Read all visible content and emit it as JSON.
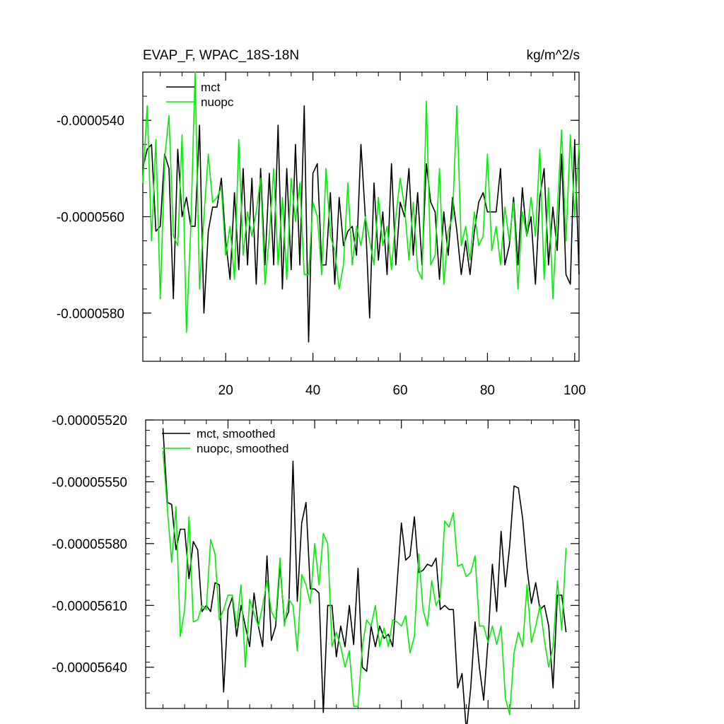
{
  "header": {
    "title": "EVAP_F, WPAC_18S-18N",
    "units": "kg/m^2/s"
  },
  "colors": {
    "mct": "#000000",
    "nuopc": "#00ee00"
  },
  "chart_data": [
    {
      "type": "line",
      "title": "EVAP_F, WPAC_18S-18N",
      "xlim": [
        1,
        101
      ],
      "ylim": [
        -5.9e-05,
        -5.3e-05
      ],
      "x_ticks": [
        20,
        40,
        60,
        80,
        100
      ],
      "x_tick_labels": [
        "20",
        "40",
        "60",
        "80",
        "100"
      ],
      "y_ticks": [
        -5.4e-05,
        -5.6e-05,
        -5.8e-05
      ],
      "y_tick_labels": [
        "-0.0000540",
        "-0.0000560",
        "-0.0000580"
      ],
      "legend_position": "top-left",
      "grid": false,
      "x": [
        1,
        2,
        3,
        4,
        5,
        6,
        7,
        8,
        9,
        10,
        11,
        12,
        13,
        14,
        15,
        16,
        17,
        18,
        19,
        20,
        21,
        22,
        23,
        24,
        25,
        26,
        27,
        28,
        29,
        30,
        31,
        32,
        33,
        34,
        35,
        36,
        37,
        38,
        39,
        40,
        41,
        42,
        43,
        44,
        45,
        46,
        47,
        48,
        49,
        50,
        51,
        52,
        53,
        54,
        55,
        56,
        57,
        58,
        59,
        60,
        61,
        62,
        63,
        64,
        65,
        66,
        67,
        68,
        69,
        70,
        71,
        72,
        73,
        74,
        75,
        76,
        77,
        78,
        79,
        80,
        81,
        82,
        83,
        84,
        85,
        86,
        87,
        88,
        89,
        90,
        91,
        92,
        93,
        94,
        95,
        96,
        97,
        98,
        99,
        100,
        101
      ],
      "series": [
        {
          "name": "mct",
          "color": "#000000",
          "values": [
            -5.5e-05,
            -5.46e-05,
            -5.45e-05,
            -5.63e-05,
            -5.62e-05,
            -5.47e-05,
            -5.5e-05,
            -5.77e-05,
            -5.46e-05,
            -5.6e-05,
            -5.56e-05,
            -5.62e-05,
            -5.62e-05,
            -5.41e-05,
            -5.8e-05,
            -5.63e-05,
            -5.58e-05,
            -5.58e-05,
            -5.52e-05,
            -5.65e-05,
            -5.73e-05,
            -5.55e-05,
            -5.71e-05,
            -5.5e-05,
            -5.7e-05,
            -5.52e-05,
            -5.74e-05,
            -5.5e-05,
            -5.7e-05,
            -5.51e-05,
            -5.7e-05,
            -5.41e-05,
            -5.75e-05,
            -5.5e-05,
            -5.71e-05,
            -5.45e-05,
            -5.7e-05,
            -5.37e-05,
            -5.86e-05,
            -5.51e-05,
            -5.49e-05,
            -5.7e-05,
            -5.7e-05,
            -5.55e-05,
            -5.74e-05,
            -5.56e-05,
            -5.66e-05,
            -5.63e-05,
            -5.62e-05,
            -5.68e-05,
            -5.45e-05,
            -5.6e-05,
            -5.81e-05,
            -5.53e-05,
            -5.69e-05,
            -5.59e-05,
            -5.72e-05,
            -5.49e-05,
            -5.7e-05,
            -5.57e-05,
            -5.6e-05,
            -5.5e-05,
            -5.68e-05,
            -5.55e-05,
            -5.7e-05,
            -5.49e-05,
            -5.57e-05,
            -5.59e-05,
            -5.73e-05,
            -5.59e-05,
            -5.68e-05,
            -5.56e-05,
            -5.63e-05,
            -5.72e-05,
            -5.65e-05,
            -5.72e-05,
            -5.63e-05,
            -5.57e-05,
            -5.55e-05,
            -5.59e-05,
            -5.59e-05,
            -5.59e-05,
            -5.5e-05,
            -5.7e-05,
            -5.66e-05,
            -5.56e-05,
            -5.7e-05,
            -5.54e-05,
            -5.64e-05,
            -5.6e-05,
            -5.74e-05,
            -5.56e-05,
            -5.5e-05,
            -5.7e-05,
            -5.58e-05,
            -5.67e-05,
            -5.47e-05,
            -5.72e-05,
            -5.74e-05,
            -5.44e-05,
            -5.72e-05
          ]
        },
        {
          "name": "nuopc",
          "color": "#00ee00",
          "values": [
            -5.53e-05,
            -5.37e-05,
            -5.65e-05,
            -5.44e-05,
            -5.77e-05,
            -5.48e-05,
            -5.39e-05,
            -5.64e-05,
            -5.66e-05,
            -5.43e-05,
            -5.84e-05,
            -5.62e-05,
            -5.3e-05,
            -5.75e-05,
            -5.6e-05,
            -5.47e-05,
            -5.57e-05,
            -5.56e-05,
            -5.54e-05,
            -5.68e-05,
            -5.62e-05,
            -5.73e-05,
            -5.44e-05,
            -5.68e-05,
            -5.59e-05,
            -5.64e-05,
            -5.59e-05,
            -5.52e-05,
            -5.74e-05,
            -5.64e-05,
            -5.5e-05,
            -5.7e-05,
            -5.56e-05,
            -5.73e-05,
            -5.52e-05,
            -5.61e-05,
            -5.53e-05,
            -5.72e-05,
            -5.72e-05,
            -5.57e-05,
            -5.6e-05,
            -5.72e-05,
            -5.5e-05,
            -5.64e-05,
            -5.67e-05,
            -5.75e-05,
            -5.7e-05,
            -5.53e-05,
            -5.7e-05,
            -5.62e-05,
            -5.66e-05,
            -5.6e-05,
            -5.65e-05,
            -5.7e-05,
            -5.56e-05,
            -5.66e-05,
            -5.62e-05,
            -5.71e-05,
            -5.6e-05,
            -5.52e-05,
            -5.58e-05,
            -5.69e-05,
            -5.57e-05,
            -5.71e-05,
            -5.73e-05,
            -5.36e-05,
            -5.7e-05,
            -5.68e-05,
            -5.5e-05,
            -5.74e-05,
            -5.63e-05,
            -5.6e-05,
            -5.37e-05,
            -5.66e-05,
            -5.62e-05,
            -5.69e-05,
            -5.59e-05,
            -5.66e-05,
            -5.64e-05,
            -5.47e-05,
            -5.67e-05,
            -5.62e-05,
            -5.7e-05,
            -5.58e-05,
            -5.65e-05,
            -5.57e-05,
            -5.75e-05,
            -5.59e-05,
            -5.64e-05,
            -5.56e-05,
            -5.64e-05,
            -5.46e-05,
            -5.73e-05,
            -5.54e-05,
            -5.77e-05,
            -5.59e-05,
            -5.42e-05,
            -5.65e-05,
            -5.43e-05,
            -5.6e-05,
            -5.45e-05
          ]
        }
      ]
    },
    {
      "type": "line",
      "xlim": [
        1,
        101
      ],
      "ylim": [
        -5.66e-05,
        -5.52e-05
      ],
      "x_ticks": [
        20,
        40,
        60,
        80,
        100
      ],
      "x_tick_labels": [],
      "y_ticks": [
        -5.52e-05,
        -5.55e-05,
        -5.58e-05,
        -5.61e-05,
        -5.64e-05
      ],
      "y_tick_labels": [
        "-0.00005520",
        "-0.00005550",
        "-0.00005580",
        "-0.00005610",
        "-0.00005640"
      ],
      "legend_position": "top-left",
      "grid": false,
      "x": [
        5,
        6,
        7,
        8,
        9,
        10,
        11,
        12,
        13,
        14,
        15,
        16,
        17,
        18,
        19,
        20,
        21,
        22,
        23,
        24,
        25,
        26,
        27,
        28,
        29,
        30,
        31,
        32,
        33,
        34,
        35,
        36,
        37,
        38,
        39,
        40,
        41,
        42,
        43,
        44,
        45,
        46,
        47,
        48,
        49,
        50,
        51,
        52,
        53,
        54,
        55,
        56,
        57,
        58,
        59,
        60,
        61,
        62,
        63,
        64,
        65,
        66,
        67,
        68,
        69,
        70,
        71,
        72,
        73,
        74,
        75,
        76,
        77,
        78,
        79,
        80,
        81,
        82,
        83,
        84,
        85,
        86,
        87,
        88,
        89,
        90,
        91,
        92,
        93,
        94,
        95,
        96,
        97,
        98
      ],
      "series": [
        {
          "name": "mct, smoothed",
          "color": "#000000",
          "values": [
            -5.524e-05,
            -5.56e-05,
            -5.561e-05,
            -5.583e-05,
            -5.573e-05,
            -5.573e-05,
            -5.597e-05,
            -5.579e-05,
            -5.583e-05,
            -5.613e-05,
            -5.61e-05,
            -5.613e-05,
            -5.599e-05,
            -5.6e-05,
            -5.652e-05,
            -5.612e-05,
            -5.606e-05,
            -5.625e-05,
            -5.61e-05,
            -5.62e-05,
            -5.63e-05,
            -5.604e-05,
            -5.62e-05,
            -5.63e-05,
            -5.586e-05,
            -5.627e-05,
            -5.62e-05,
            -5.59e-05,
            -5.618e-05,
            -5.613e-05,
            -5.54e-05,
            -5.608e-05,
            -5.57e-05,
            -5.56e-05,
            -5.602e-05,
            -5.602e-05,
            -5.604e-05,
            -5.662e-05,
            -5.61e-05,
            -5.61e-05,
            -5.635e-05,
            -5.62e-05,
            -5.63e-05,
            -5.61e-05,
            -5.629e-05,
            -5.592e-05,
            -5.64e-05,
            -5.642e-05,
            -5.62e-05,
            -5.63e-05,
            -5.62e-05,
            -5.626e-05,
            -5.624e-05,
            -5.63e-05,
            -5.6e-05,
            -5.57e-05,
            -5.588e-05,
            -5.586e-05,
            -5.567e-05,
            -5.594e-05,
            -5.593e-05,
            -5.59e-05,
            -5.591e-05,
            -5.587e-05,
            -5.612e-05,
            -5.61e-05,
            -5.612e-05,
            -5.612e-05,
            -5.65e-05,
            -5.643e-05,
            -5.671e-05,
            -5.65e-05,
            -5.618e-05,
            -5.64e-05,
            -5.656e-05,
            -5.627e-05,
            -5.59e-05,
            -5.613e-05,
            -5.574e-05,
            -5.601e-05,
            -5.581e-05,
            -5.552e-05,
            -5.553e-05,
            -5.568e-05,
            -5.592e-05,
            -5.609e-05,
            -5.599e-05,
            -5.612e-05,
            -5.61e-05,
            -5.62e-05,
            -5.65e-05,
            -5.605e-05,
            -5.605e-05,
            -5.623e-05
          ]
        },
        {
          "name": "nuopc, smoothed",
          "color": "#00ee00",
          "values": [
            -5.535e-05,
            -5.563e-05,
            -5.589e-05,
            -5.562e-05,
            -5.625e-05,
            -5.612e-05,
            -5.567e-05,
            -5.618e-05,
            -5.617e-05,
            -5.61e-05,
            -5.612e-05,
            -5.578e-05,
            -5.585e-05,
            -5.617e-05,
            -5.612e-05,
            -5.605e-05,
            -5.605e-05,
            -5.62e-05,
            -5.6e-05,
            -5.64e-05,
            -5.607e-05,
            -5.614e-05,
            -5.62e-05,
            -5.61e-05,
            -5.598e-05,
            -5.613e-05,
            -5.617e-05,
            -5.587e-05,
            -5.62e-05,
            -5.607e-05,
            -5.61e-05,
            -5.632e-05,
            -5.595e-05,
            -5.6e-05,
            -5.609e-05,
            -5.58e-05,
            -5.6e-05,
            -5.575e-05,
            -5.58e-05,
            -5.63e-05,
            -5.623e-05,
            -5.63e-05,
            -5.64e-05,
            -5.632e-05,
            -5.659e-05,
            -5.659e-05,
            -5.63e-05,
            -5.617e-05,
            -5.62e-05,
            -5.61e-05,
            -5.63e-05,
            -5.621e-05,
            -5.63e-05,
            -5.617e-05,
            -5.618e-05,
            -5.62e-05,
            -5.615e-05,
            -5.633e-05,
            -5.625e-05,
            -5.585e-05,
            -5.612e-05,
            -5.62e-05,
            -5.598e-05,
            -5.61e-05,
            -5.606e-05,
            -5.569e-05,
            -5.572e-05,
            -5.565e-05,
            -5.591e-05,
            -5.59e-05,
            -5.596e-05,
            -5.594e-05,
            -5.586e-05,
            -5.62e-05,
            -5.62e-05,
            -5.628e-05,
            -5.62e-05,
            -5.629e-05,
            -5.62e-05,
            -5.655e-05,
            -5.663e-05,
            -5.633e-05,
            -5.623e-05,
            -5.63e-05,
            -5.6e-05,
            -5.628e-05,
            -5.62e-05,
            -5.61e-05,
            -5.627e-05,
            -5.64e-05,
            -5.63e-05,
            -5.598e-05,
            -5.622e-05,
            -5.582e-05
          ]
        }
      ]
    }
  ]
}
